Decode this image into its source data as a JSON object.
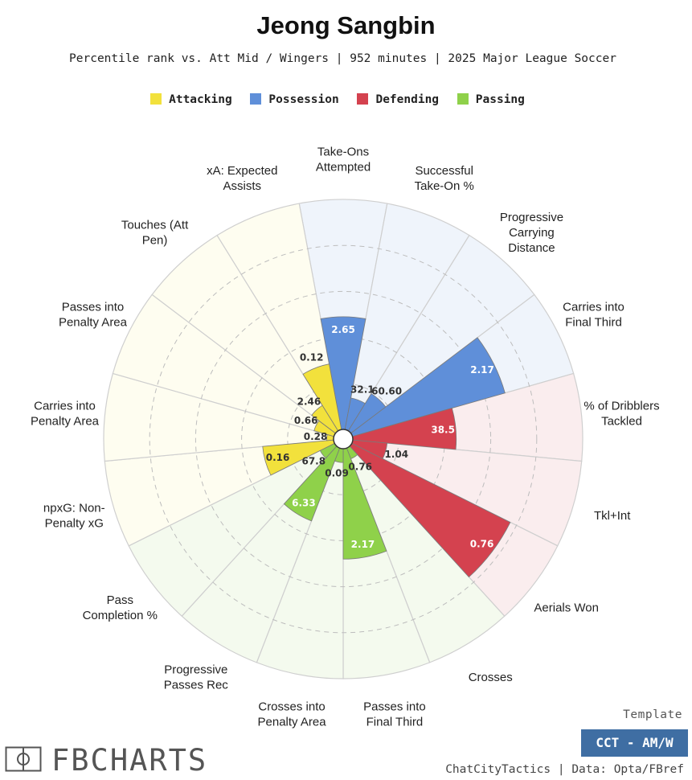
{
  "title": "Jeong Sangbin",
  "subtitle": "Percentile rank vs. Att Mid / Wingers | 952 minutes | 2025 Major League Soccer",
  "legend": [
    {
      "label": "Attacking",
      "color": "#f2e13c"
    },
    {
      "label": "Possession",
      "color": "#5f8fd9"
    },
    {
      "label": "Defending",
      "color": "#d4424f"
    },
    {
      "label": "Passing",
      "color": "#8fd14a"
    }
  ],
  "template": {
    "label": "Template",
    "badge": "CCT - AM/W"
  },
  "credit": "ChatCityTactics | Data: Opta/FBref",
  "logo": {
    "text": "FBCHARTS",
    "icon": "soccer-pitch-icon"
  },
  "chart_data": {
    "type": "polar-area",
    "title": "Jeong Sangbin",
    "rmax": 100,
    "grid_levels": [
      20,
      40,
      60,
      80
    ],
    "categories": [
      {
        "lines": [
          "Take-Ons",
          "Attempted"
        ],
        "group": "Possession",
        "percentile": 49,
        "value": "2.65"
      },
      {
        "lines": [
          "Successful",
          "Take-On %"
        ],
        "group": "Possession",
        "percentile": 14,
        "value": "32.1"
      },
      {
        "lines": [
          "Progressive",
          "Carrying",
          "Distance"
        ],
        "group": "Possession",
        "percentile": 19,
        "value": "60.60"
      },
      {
        "lines": [
          "Carries into",
          "Final Third"
        ],
        "group": "Possession",
        "percentile": 69,
        "value": "2.17"
      },
      {
        "lines": [
          "% of Dribblers",
          "Tackled"
        ],
        "group": "Defending",
        "percentile": 45,
        "value": "38.5"
      },
      {
        "lines": [
          "Tkl+Int"
        ],
        "group": "Defending",
        "percentile": 15,
        "value": "1.04"
      },
      {
        "lines": [
          "Aerials Won"
        ],
        "group": "Defending",
        "percentile": 77,
        "value": "0.76"
      },
      {
        "lines": [
          "Crosses"
        ],
        "group": "Passing",
        "percentile": 5,
        "value": "0.76"
      },
      {
        "lines": [
          "Passes into",
          "Final Third"
        ],
        "group": "Passing",
        "percentile": 48,
        "value": "2.17"
      },
      {
        "lines": [
          "Crosses into",
          "Penalty Area"
        ],
        "group": "Passing",
        "percentile": 6,
        "value": "0.09"
      },
      {
        "lines": [
          "Progressive",
          "Passes Rec"
        ],
        "group": "Passing",
        "percentile": 34,
        "value": "6.33"
      },
      {
        "lines": [
          "Pass",
          "Completion %"
        ],
        "group": "Passing",
        "percentile": 7,
        "value": "67.8"
      },
      {
        "lines": [
          "npxG: Non-",
          "Penalty xG"
        ],
        "group": "Attacking",
        "percentile": 31,
        "value": "0.16"
      },
      {
        "lines": [
          "Carries into",
          "Penalty Area"
        ],
        "group": "Attacking",
        "percentile": 3,
        "value": "0.28"
      },
      {
        "lines": [
          "Passes into",
          "Penalty Area"
        ],
        "group": "Attacking",
        "percentile": 9,
        "value": "0.66"
      },
      {
        "lines": [
          "Touches (Att",
          "Pen)"
        ],
        "group": "Attacking",
        "percentile": 13,
        "value": "2.46"
      },
      {
        "lines": [
          "xA: Expected",
          "Assists"
        ],
        "group": "Attacking",
        "percentile": 29,
        "value": "0.12"
      }
    ]
  }
}
